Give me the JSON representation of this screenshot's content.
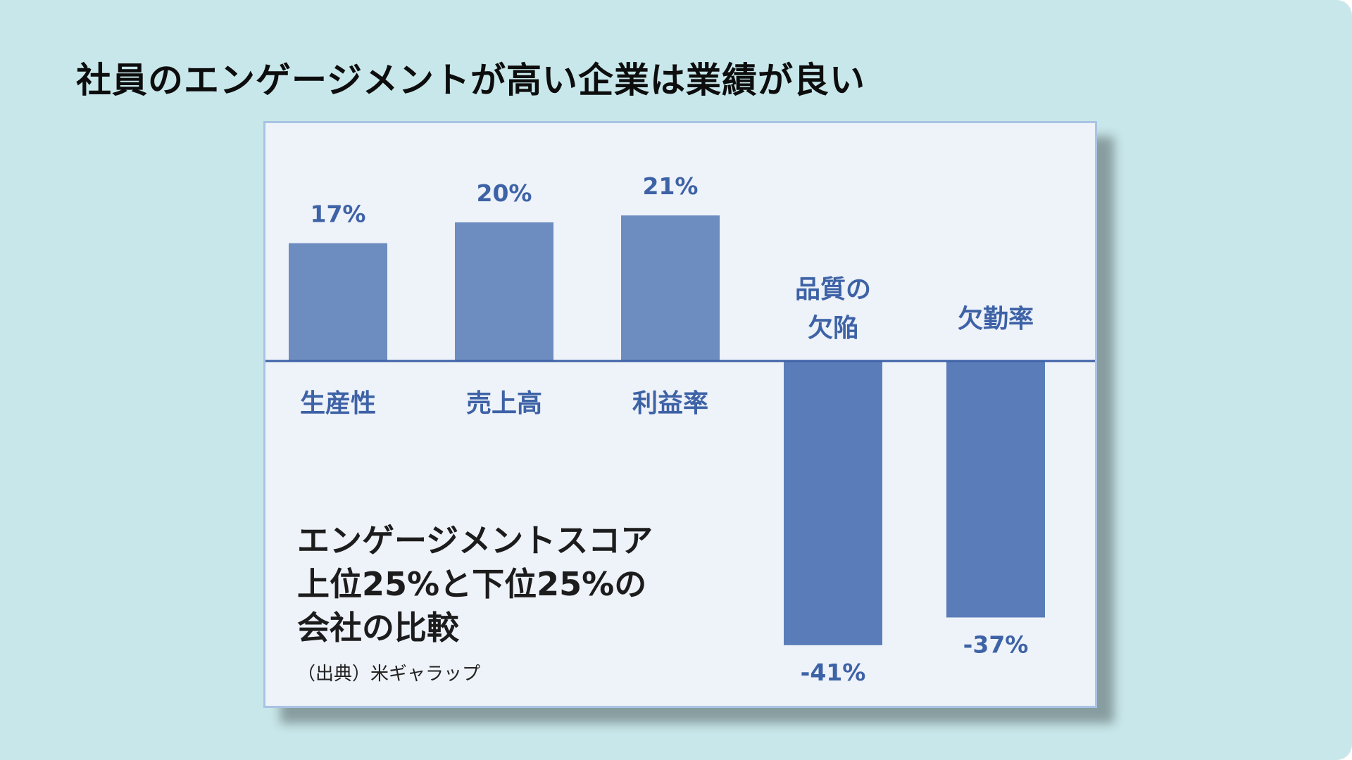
{
  "title": "社員のエンゲージメントが高い企業は業績が良い",
  "colors": {
    "background": "#c8e7ea",
    "card": "#eef2f9",
    "positive_bar": "#6d8cc0",
    "negative_bar": "#5a7db9",
    "label": "#3d62a6",
    "baseline": "#3d62a6"
  },
  "chart_data": {
    "type": "bar",
    "categories": [
      "生産性",
      "売上高",
      "利益率",
      "品質の欠陥",
      "欠勤率"
    ],
    "category_lines": [
      [
        "生産性"
      ],
      [
        "売上高"
      ],
      [
        "利益率"
      ],
      [
        "品質の",
        "欠陥"
      ],
      [
        "欠勤率"
      ]
    ],
    "values": [
      17,
      20,
      21,
      -41,
      -37
    ],
    "value_labels": [
      "17%",
      "20%",
      "21%",
      "-41%",
      "-37%"
    ],
    "ylim": [
      -45,
      22
    ],
    "grid": false,
    "legend": "none",
    "annotation_lines": [
      "エンゲージメントスコア",
      "上位25%と下位25%の",
      "会社の比較"
    ],
    "source": "（出典）米ギャラップ"
  }
}
